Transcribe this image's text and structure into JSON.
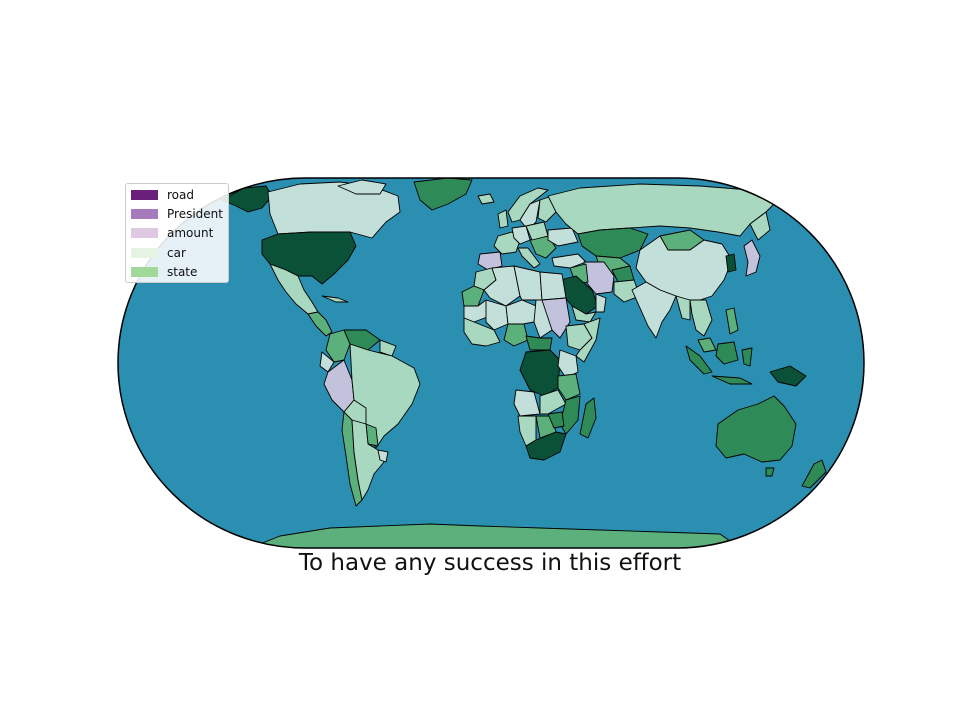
{
  "caption": "To have any success in this effort",
  "legend": {
    "items": [
      {
        "label": "road",
        "color": "#6a1f7a"
      },
      {
        "label": "President",
        "color": "#a67bbd"
      },
      {
        "label": "amount",
        "color": "#dfc8e2"
      },
      {
        "label": "car",
        "color": "#e5f3e2"
      },
      {
        "label": "state",
        "color": "#a1d99b"
      }
    ]
  },
  "colors": {
    "ocean": "#2a8fb0",
    "outline": "#000000",
    "darkest_green": "#0b5137",
    "dark_green": "#2e8b57",
    "medium_green": "#5cb07b",
    "light_green": "#a8d8bf",
    "pale_teal": "#c3dfd9",
    "lavender": "#c2c2dd"
  }
}
